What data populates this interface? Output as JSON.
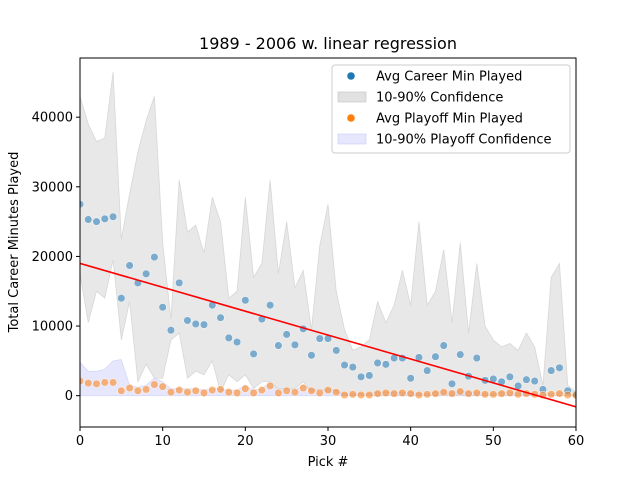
{
  "chart_data": {
    "type": "scatter",
    "title": "1989 - 2006 w. linear regression",
    "xlabel": "Pick #",
    "ylabel": "Total Career Minutes Played",
    "xlim": [
      0,
      60
    ],
    "ylim": [
      -4500,
      48500
    ],
    "xticks": [
      0,
      10,
      20,
      30,
      40,
      50,
      60
    ],
    "yticks": [
      0,
      10000,
      20000,
      30000,
      40000
    ],
    "ytick_labels": [
      "0",
      "10000",
      "20000",
      "30000",
      "40000"
    ],
    "grid": false,
    "legend_position": "top-right",
    "colors": {
      "career": "#1f77b4",
      "playoff": "#ff7f0e",
      "career_band": "#bdbdbd",
      "playoff_band": "#c8c8f8",
      "regression": "#ff0000"
    },
    "legend": [
      {
        "label": "Avg Career Min Played",
        "kind": "dot",
        "color": "#1f77b4"
      },
      {
        "label": "10-90% Confidence",
        "kind": "patch",
        "color": "#bdbdbd"
      },
      {
        "label": "Avg Playoff Min Played",
        "kind": "dot",
        "color": "#ff7f0e"
      },
      {
        "label": "10-90% Playoff Confidence",
        "kind": "patch",
        "color": "#c8c8f8"
      }
    ],
    "regression": {
      "x": [
        0,
        60
      ],
      "y": [
        19000,
        -1600
      ]
    },
    "career_x": [
      0,
      1,
      2,
      3,
      4,
      5,
      6,
      7,
      8,
      9,
      10,
      11,
      12,
      13,
      14,
      15,
      16,
      17,
      18,
      19,
      20,
      21,
      22,
      23,
      24,
      25,
      26,
      27,
      28,
      29,
      30,
      31,
      32,
      33,
      34,
      35,
      36,
      37,
      38,
      39,
      40,
      41,
      42,
      43,
      44,
      45,
      46,
      47,
      48,
      49,
      50,
      51,
      52,
      53,
      54,
      55,
      56,
      57,
      58,
      59,
      60
    ],
    "career_avg": [
      27500,
      25300,
      25000,
      25400,
      25700,
      14000,
      18700,
      16200,
      17500,
      19900,
      12700,
      9400,
      16200,
      10800,
      10300,
      10200,
      13000,
      11200,
      8300,
      7700,
      13700,
      6000,
      11000,
      13000,
      7200,
      8800,
      7300,
      9600,
      5800,
      8200,
      8200,
      6500,
      4400,
      4100,
      2700,
      2900,
      4700,
      4500,
      5400,
      5400,
      2500,
      5500,
      3600,
      5600,
      7200,
      1700,
      5900,
      2800,
      5400,
      2200,
      2400,
      2000,
      2700,
      1400,
      2300,
      2100,
      900,
      3600,
      4000,
      700,
      200
    ],
    "career_p90": [
      43000,
      39000,
      36500,
      37000,
      46500,
      22500,
      29000,
      35000,
      39500,
      43000,
      22000,
      11000,
      31000,
      23500,
      24500,
      20500,
      28500,
      25000,
      14000,
      15000,
      28500,
      17000,
      19000,
      31000,
      17500,
      25000,
      15500,
      18000,
      9500,
      21500,
      27500,
      15000,
      9500,
      6500,
      7000,
      8000,
      13500,
      10500,
      13000,
      18000,
      13000,
      25000,
      13000,
      15000,
      21000,
      10500,
      22000,
      9000,
      19000,
      10000,
      8000,
      7000,
      7500,
      6500,
      9000,
      7000,
      1500,
      17000,
      19000,
      1500,
      500
    ],
    "career_p10": [
      17500,
      10500,
      15000,
      14000,
      19500,
      8000,
      13500,
      2000,
      4500,
      2500,
      2500,
      8000,
      9000,
      2500,
      3500,
      3000,
      5000,
      500,
      3000,
      2000,
      3000,
      1000,
      2000,
      2000,
      1000,
      1000,
      1000,
      2000,
      500,
      1000,
      500,
      500,
      0,
      0,
      0,
      0,
      0,
      0,
      0,
      0,
      0,
      0,
      0,
      0,
      0,
      0,
      0,
      0,
      0,
      0,
      0,
      0,
      0,
      0,
      0,
      0,
      0,
      0,
      0,
      0,
      0
    ],
    "playoff_avg": [
      2100,
      1800,
      1700,
      1900,
      1900,
      700,
      1100,
      700,
      900,
      1600,
      1300,
      500,
      800,
      500,
      700,
      400,
      800,
      900,
      500,
      400,
      1000,
      400,
      800,
      1400,
      400,
      700,
      500,
      1100,
      700,
      400,
      800,
      500,
      100,
      200,
      100,
      100,
      300,
      400,
      300,
      400,
      300,
      100,
      200,
      300,
      500,
      300,
      600,
      300,
      400,
      200,
      200,
      300,
      400,
      200,
      300,
      200,
      100,
      200,
      300,
      100,
      50
    ],
    "playoff_p90": [
      4800,
      3500,
      3500,
      3800,
      5000,
      5200,
      1500,
      1200,
      1500,
      2500,
      2000,
      1000,
      1000,
      1000,
      1000,
      800,
      1000,
      1000,
      800,
      800,
      1500,
      800,
      1000,
      2000,
      800,
      1000,
      800,
      1500,
      1000,
      800,
      1000,
      800,
      300,
      300,
      300,
      300,
      500,
      500,
      500,
      500,
      500,
      300,
      300,
      500,
      700,
      500,
      800,
      500,
      500,
      300,
      300,
      500,
      500,
      300,
      500,
      300,
      200,
      300,
      500,
      200,
      100
    ],
    "playoff_p10": [
      0,
      0,
      0,
      0,
      0,
      0,
      0,
      0,
      0,
      0,
      0,
      0,
      0,
      0,
      0,
      0,
      0,
      0,
      0,
      0,
      0,
      0,
      0,
      0,
      0,
      0,
      0,
      0,
      0,
      0,
      0,
      0,
      0,
      0,
      0,
      0,
      0,
      0,
      0,
      0,
      0,
      0,
      0,
      0,
      0,
      0,
      0,
      0,
      0,
      0,
      0,
      0,
      0,
      0,
      0,
      0,
      0,
      0,
      0,
      0,
      0
    ]
  }
}
